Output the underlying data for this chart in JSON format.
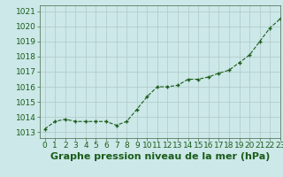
{
  "x": [
    0,
    1,
    2,
    3,
    4,
    5,
    6,
    7,
    8,
    9,
    10,
    11,
    12,
    13,
    14,
    15,
    16,
    17,
    18,
    19,
    20,
    21,
    22,
    23
  ],
  "y": [
    1013.2,
    1013.7,
    1013.85,
    1013.7,
    1013.7,
    1013.7,
    1013.7,
    1013.45,
    1013.7,
    1014.5,
    1015.35,
    1016.0,
    1016.0,
    1016.1,
    1016.5,
    1016.5,
    1016.65,
    1016.9,
    1017.1,
    1017.6,
    1018.1,
    1019.0,
    1019.9,
    1020.5
  ],
  "xlim": [
    -0.5,
    23
  ],
  "ylim": [
    1012.6,
    1021.4
  ],
  "yticks": [
    1013,
    1014,
    1015,
    1016,
    1017,
    1018,
    1019,
    1020,
    1021
  ],
  "xticks": [
    0,
    1,
    2,
    3,
    4,
    5,
    6,
    7,
    8,
    9,
    10,
    11,
    12,
    13,
    14,
    15,
    16,
    17,
    18,
    19,
    20,
    21,
    22,
    23
  ],
  "xlabel": "Graphe pression niveau de la mer (hPa)",
  "line_color": "#1a5c1a",
  "marker": "+",
  "marker_color": "#1a5c1a",
  "bg_color": "#cce8e8",
  "grid_color": "#b0c8c8",
  "tick_fontsize": 6.5,
  "xlabel_fontsize": 8,
  "xlabel_fontweight": "bold"
}
